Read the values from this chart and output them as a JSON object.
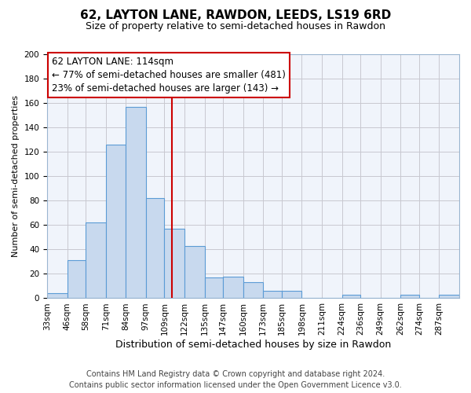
{
  "title": "62, LAYTON LANE, RAWDON, LEEDS, LS19 6RD",
  "subtitle": "Size of property relative to semi-detached houses in Rawdon",
  "xlabel": "Distribution of semi-detached houses by size in Rawdon",
  "ylabel": "Number of semi-detached properties",
  "footer_line1": "Contains HM Land Registry data © Crown copyright and database right 2024.",
  "footer_line2": "Contains public sector information licensed under the Open Government Licence v3.0.",
  "bin_edges": [
    33,
    46,
    58,
    71,
    84,
    97,
    109,
    122,
    135,
    147,
    160,
    173,
    185,
    198,
    211,
    224,
    236,
    249,
    262,
    274,
    287,
    300
  ],
  "bin_labels": [
    "33sqm",
    "46sqm",
    "58sqm",
    "71sqm",
    "84sqm",
    "97sqm",
    "109sqm",
    "122sqm",
    "135sqm",
    "147sqm",
    "160sqm",
    "173sqm",
    "185sqm",
    "198sqm",
    "211sqm",
    "224sqm",
    "236sqm",
    "249sqm",
    "262sqm",
    "274sqm",
    "287sqm"
  ],
  "counts": [
    4,
    31,
    62,
    126,
    157,
    82,
    57,
    43,
    17,
    18,
    13,
    6,
    6,
    0,
    0,
    3,
    0,
    0,
    3,
    0,
    3
  ],
  "bar_color": "#c8d9ee",
  "bar_edge_color": "#5b9bd5",
  "property_line_x": 114,
  "property_line_color": "#cc0000",
  "annotation_title": "62 LAYTON LANE: 114sqm",
  "annotation_line1": "← 77% of semi-detached houses are smaller (481)",
  "annotation_line2": "23% of semi-detached houses are larger (143) →",
  "annotation_box_color": "#ffffff",
  "annotation_box_edge": "#cc0000",
  "ylim": [
    0,
    200
  ],
  "yticks": [
    0,
    20,
    40,
    60,
    80,
    100,
    120,
    140,
    160,
    180,
    200
  ],
  "title_fontsize": 11,
  "subtitle_fontsize": 9,
  "xlabel_fontsize": 9,
  "ylabel_fontsize": 8,
  "tick_fontsize": 7.5,
  "annotation_title_fontsize": 9,
  "annotation_body_fontsize": 8.5,
  "footer_fontsize": 7
}
